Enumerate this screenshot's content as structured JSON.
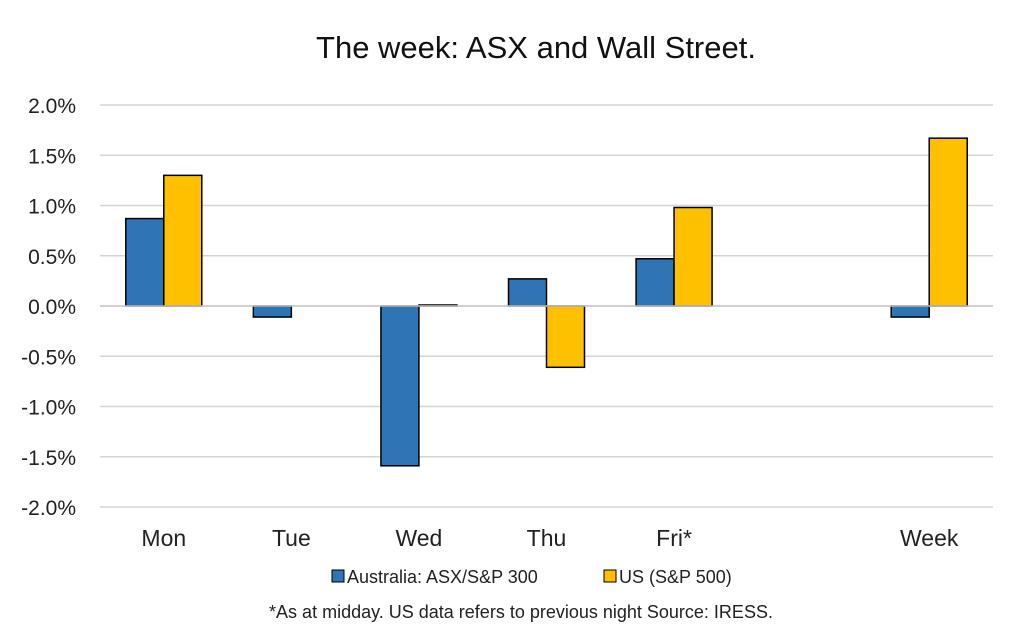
{
  "chart_data": {
    "type": "bar",
    "title": "The week:  ASX and Wall Street.",
    "categories": [
      "Mon",
      "Tue",
      "Wed",
      "Thu",
      "Fri*",
      "",
      "Week"
    ],
    "series": [
      {
        "name": "Australia: ASX/S&P 300",
        "color": "#2e75b6",
        "values": [
          0.87,
          -0.11,
          -1.59,
          0.27,
          0.47,
          null,
          -0.11
        ]
      },
      {
        "name": "US (S&P 500)",
        "color": "#ffc000",
        "values": [
          1.3,
          null,
          0.01,
          -0.61,
          0.98,
          null,
          1.67
        ]
      }
    ],
    "ylim": [
      -2.0,
      2.0
    ],
    "yticks": [
      "2.0%",
      "1.5%",
      "1.0%",
      "0.5%",
      "0.0%",
      "-0.5%",
      "-1.0%",
      "-1.5%",
      "-2.0%"
    ],
    "grid": true,
    "legend_position": "bottom",
    "footnote": "*As at midday. US data refers to previous night  Source:  IRESS."
  }
}
